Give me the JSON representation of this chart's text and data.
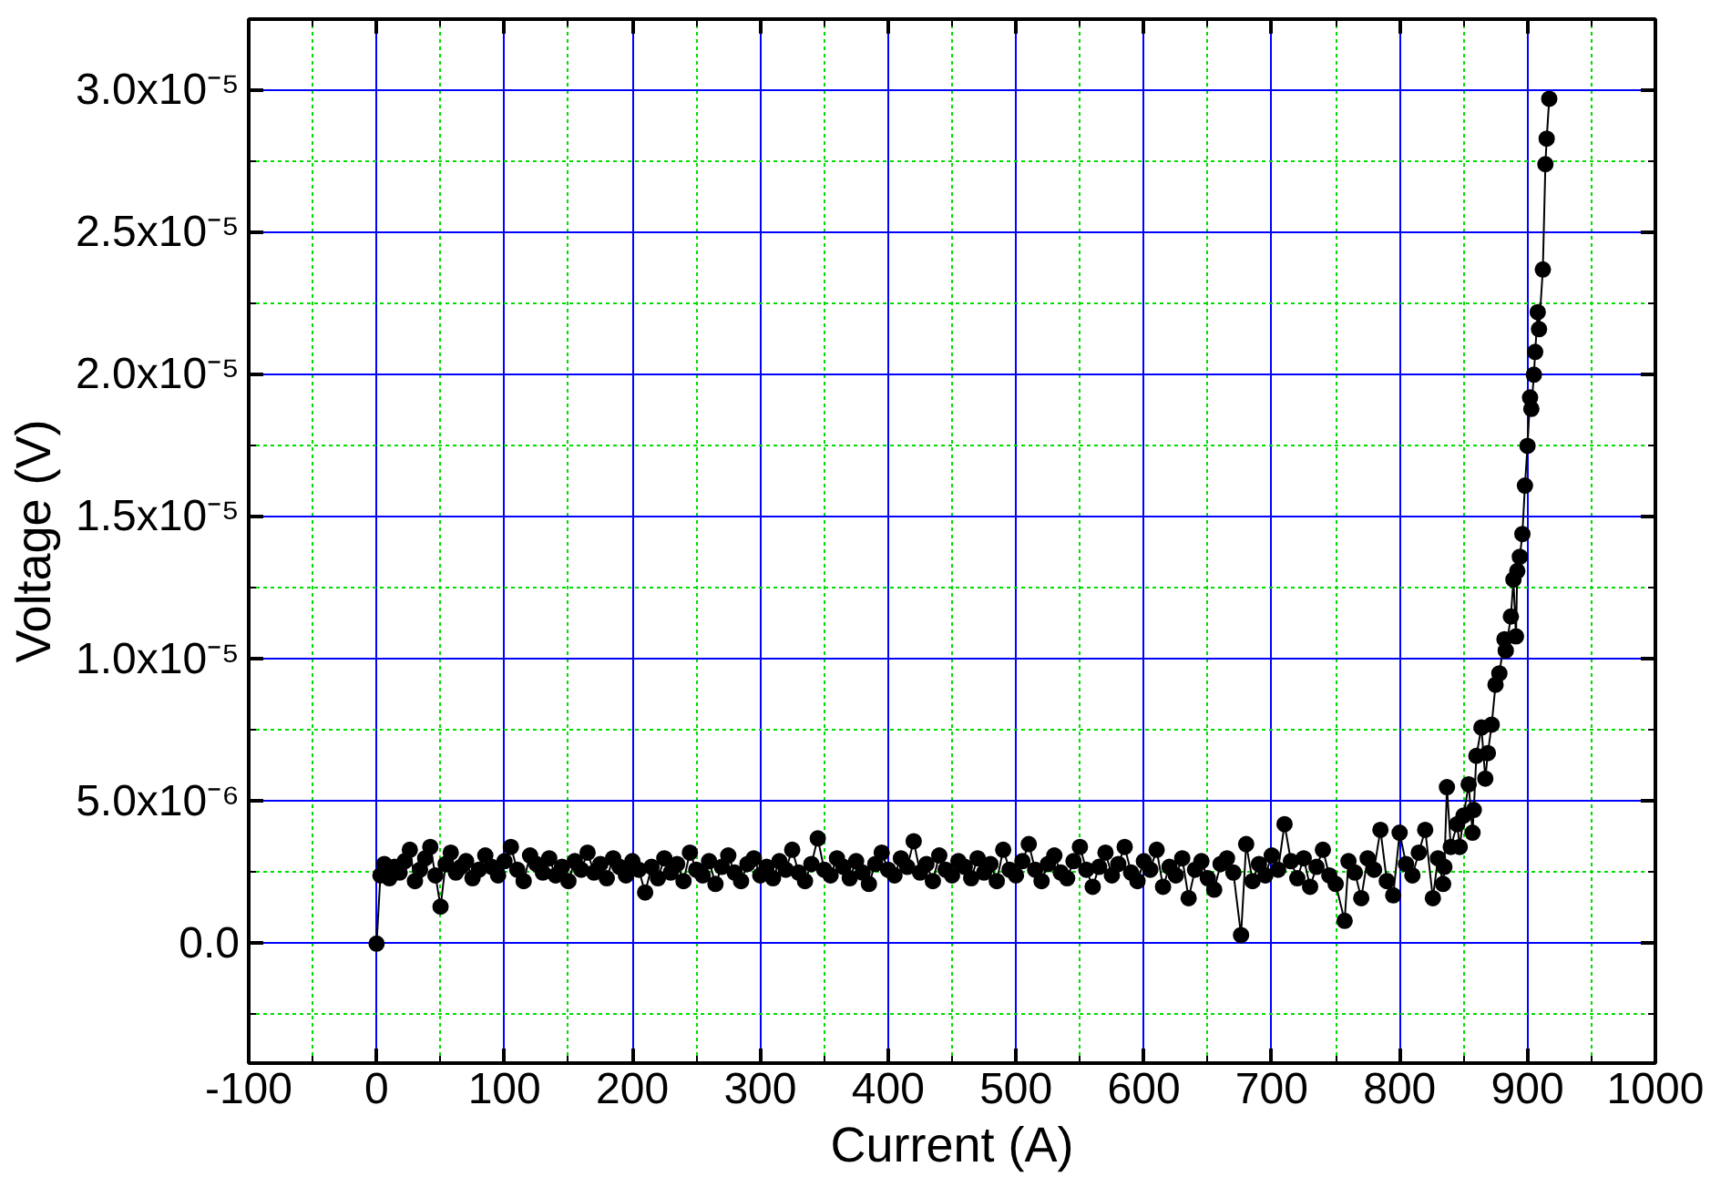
{
  "chart_data": {
    "type": "line",
    "xlabel": "Current (A)",
    "ylabel": "Voltage (V)",
    "xlim": [
      -100,
      1000
    ],
    "xticks": [
      -100,
      {
        "value": -50,
        "label": null
      },
      0,
      {
        "value": 50,
        "label": null
      },
      100,
      {
        "value": 150,
        "label": null
      },
      200,
      {
        "value": 250,
        "label": null
      },
      300,
      {
        "value": 350,
        "label": null
      },
      400,
      {
        "value": 450,
        "label": null
      },
      500,
      {
        "value": 550,
        "label": null
      },
      600,
      {
        "value": 650,
        "label": null
      },
      700,
      {
        "value": 750,
        "label": null
      },
      800,
      {
        "value": 850,
        "label": null
      },
      900,
      {
        "value": 950,
        "label": null
      },
      1000
    ],
    "ylim": [
      -4.2e-06,
      3.25e-05
    ],
    "yticks": [
      {
        "value": -2.5e-06,
        "label": null
      },
      {
        "value": 0,
        "label": "0.0"
      },
      {
        "value": 2.5e-06,
        "label": null
      },
      {
        "value": 5e-06,
        "label": "5.0x10⁻⁶"
      },
      {
        "value": 7.5e-06,
        "label": null
      },
      {
        "value": 1e-05,
        "label": "1.0x10⁻⁵"
      },
      {
        "value": 1.25e-05,
        "label": null
      },
      {
        "value": 1.5e-05,
        "label": "1.5x10⁻⁵"
      },
      {
        "value": 1.75e-05,
        "label": null
      },
      {
        "value": 2e-05,
        "label": "2.0x10⁻⁵"
      },
      {
        "value": 2.25e-05,
        "label": null
      },
      {
        "value": 2.5e-05,
        "label": "2.5x10⁻⁵"
      },
      {
        "value": 2.75e-05,
        "label": null
      },
      {
        "value": 3e-05,
        "label": "3.0x10⁻⁵"
      },
      {
        "value": 3.25e-05,
        "label": null
      }
    ],
    "grid": true,
    "marker": "circle",
    "line_style": "solid",
    "series": [
      {
        "color": "#000000",
        "x": [
          0,
          3,
          6,
          10,
          14,
          18,
          22,
          26,
          30,
          34,
          38,
          42,
          46,
          50,
          54,
          58,
          62,
          66,
          70,
          75,
          80,
          85,
          90,
          95,
          100,
          105,
          110,
          115,
          120,
          125,
          130,
          135,
          140,
          145,
          150,
          155,
          160,
          165,
          170,
          175,
          180,
          185,
          190,
          195,
          200,
          205,
          210,
          215,
          220,
          225,
          230,
          235,
          240,
          245,
          250,
          255,
          260,
          265,
          270,
          275,
          280,
          285,
          290,
          295,
          300,
          305,
          310,
          315,
          320,
          325,
          330,
          335,
          340,
          345,
          350,
          355,
          360,
          365,
          370,
          375,
          380,
          385,
          390,
          395,
          400,
          405,
          410,
          415,
          420,
          425,
          430,
          435,
          440,
          445,
          450,
          455,
          460,
          465,
          470,
          475,
          480,
          485,
          490,
          495,
          500,
          505,
          510,
          515,
          520,
          525,
          530,
          535,
          540,
          545,
          550,
          555,
          560,
          565,
          570,
          575,
          580,
          585,
          590,
          595,
          600,
          605,
          610,
          615,
          620,
          625,
          630,
          635,
          640,
          645,
          650,
          655,
          660,
          665,
          670,
          676,
          680,
          685,
          690,
          695,
          700,
          705,
          710,
          715,
          720,
          725,
          730,
          735,
          740,
          745,
          750,
          757,
          760,
          765,
          770,
          775,
          780,
          785,
          790,
          795,
          800,
          805,
          810,
          815,
          820,
          826,
          830,
          834,
          835,
          837,
          840,
          845,
          847,
          850,
          854,
          857,
          858,
          860,
          864,
          867,
          869,
          872,
          875,
          878,
          882,
          883,
          887,
          889,
          891,
          892,
          894,
          896,
          898,
          900,
          902,
          903,
          905,
          906,
          908,
          909,
          912,
          914,
          915,
          917
        ],
        "values": [
          0,
          2.4e-06,
          2.8e-06,
          2.3e-06,
          2.7e-06,
          2.5e-06,
          2.9e-06,
          3.3e-06,
          2.2e-06,
          2.6e-06,
          3e-06,
          3.4e-06,
          2.4e-06,
          1.3e-06,
          2.8e-06,
          3.2e-06,
          2.5e-06,
          2.7e-06,
          2.9e-06,
          2.3e-06,
          2.6e-06,
          3.1e-06,
          2.7e-06,
          2.4e-06,
          2.9e-06,
          3.4e-06,
          2.6e-06,
          2.2e-06,
          3.1e-06,
          2.8e-06,
          2.5e-06,
          3e-06,
          2.4e-06,
          2.7e-06,
          2.2e-06,
          2.9e-06,
          2.6e-06,
          3.2e-06,
          2.5e-06,
          2.8e-06,
          2.3e-06,
          3e-06,
          2.7e-06,
          2.4e-06,
          2.9e-06,
          2.6e-06,
          1.8e-06,
          2.7e-06,
          2.3e-06,
          3e-06,
          2.5e-06,
          2.8e-06,
          2.2e-06,
          3.2e-06,
          2.6e-06,
          2.4e-06,
          2.9e-06,
          2.1e-06,
          2.7e-06,
          3.1e-06,
          2.5e-06,
          2.2e-06,
          2.8e-06,
          3e-06,
          2.4e-06,
          2.7e-06,
          2.3e-06,
          2.9e-06,
          2.6e-06,
          3.3e-06,
          2.5e-06,
          2.2e-06,
          2.8e-06,
          3.7e-06,
          2.6e-06,
          2.4e-06,
          3e-06,
          2.7e-06,
          2.3e-06,
          2.9e-06,
          2.5e-06,
          2.1e-06,
          2.8e-06,
          3.2e-06,
          2.6e-06,
          2.4e-06,
          3e-06,
          2.7e-06,
          3.6e-06,
          2.5e-06,
          2.8e-06,
          2.2e-06,
          3.1e-06,
          2.6e-06,
          2.4e-06,
          2.9e-06,
          2.7e-06,
          2.3e-06,
          3e-06,
          2.5e-06,
          2.8e-06,
          2.2e-06,
          3.3e-06,
          2.6e-06,
          2.4e-06,
          2.9e-06,
          3.5e-06,
          2.6e-06,
          2.2e-06,
          2.8e-06,
          3.1e-06,
          2.5e-06,
          2.3e-06,
          2.9e-06,
          3.4e-06,
          2.6e-06,
          2e-06,
          2.7e-06,
          3.2e-06,
          2.4e-06,
          2.8e-06,
          3.4e-06,
          2.5e-06,
          2.2e-06,
          2.9e-06,
          2.6e-06,
          3.3e-06,
          2e-06,
          2.7e-06,
          2.4e-06,
          3e-06,
          1.6e-06,
          2.6e-06,
          2.9e-06,
          2.3e-06,
          1.9e-06,
          2.8e-06,
          3e-06,
          2.5e-06,
          3e-07,
          3.5e-06,
          2.2e-06,
          2.8e-06,
          2.4e-06,
          3.1e-06,
          2.6e-06,
          4.2e-06,
          2.9e-06,
          2.3e-06,
          3e-06,
          2e-06,
          2.7e-06,
          3.3e-06,
          2.4e-06,
          2.1e-06,
          8e-07,
          2.9e-06,
          2.5e-06,
          1.6e-06,
          3e-06,
          2.6e-06,
          4e-06,
          2.2e-06,
          1.7e-06,
          3.9e-06,
          2.8e-06,
          2.4e-06,
          3.2e-06,
          4e-06,
          1.6e-06,
          3e-06,
          2.1e-06,
          2.7e-06,
          5.5e-06,
          3.4e-06,
          4.2e-06,
          3.4e-06,
          4.5e-06,
          5.6e-06,
          3.9e-06,
          4.7e-06,
          6.6e-06,
          7.6e-06,
          5.8e-06,
          6.7e-06,
          7.7e-06,
          9.1e-06,
          9.5e-06,
          1.07e-05,
          1.03e-05,
          1.15e-05,
          1.28e-05,
          1.08e-05,
          1.31e-05,
          1.36e-05,
          1.44e-05,
          1.61e-05,
          1.75e-05,
          1.92e-05,
          1.88e-05,
          2e-05,
          2.08e-05,
          2.22e-05,
          2.16e-05,
          2.37e-05,
          2.74e-05,
          2.83e-05,
          2.97e-05
        ]
      }
    ]
  }
}
